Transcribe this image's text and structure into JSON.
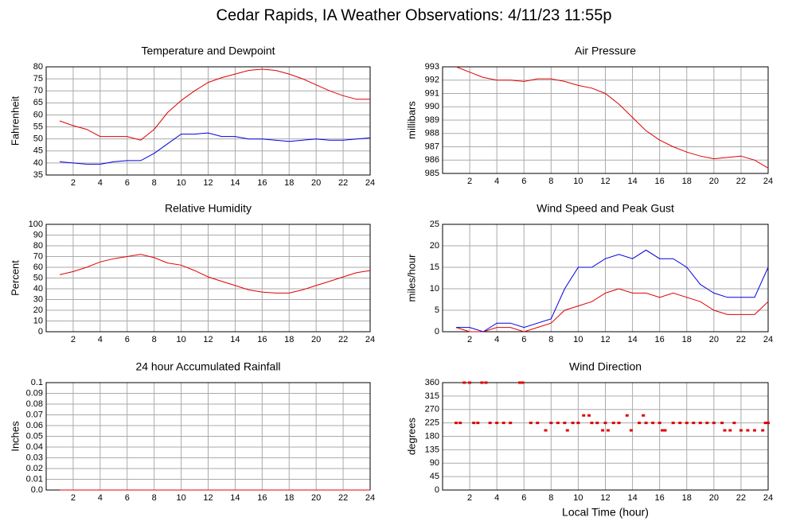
{
  "title": "Cedar Rapids, IA Weather Observations: 4/11/23 11:55p",
  "chart_data": [
    {
      "type": "line",
      "title": "Temperature and Dewpoint",
      "ylabel": "Fahrenheit",
      "x": [
        1,
        2,
        3,
        4,
        5,
        6,
        7,
        8,
        9,
        10,
        11,
        12,
        13,
        14,
        15,
        16,
        17,
        18,
        19,
        20,
        21,
        22,
        23,
        24
      ],
      "series": [
        {
          "color": "#e00000",
          "values": [
            57.5,
            55.5,
            54,
            51,
            51,
            51,
            49.5,
            54,
            61,
            66,
            70,
            73.5,
            75.5,
            77,
            78.5,
            79,
            78.5,
            77,
            75,
            72.5,
            70,
            68,
            66.5,
            66.5
          ]
        },
        {
          "color": "#0000e0",
          "values": [
            40.5,
            40,
            39.5,
            39.5,
            40.5,
            41,
            41,
            44,
            48,
            52,
            52,
            52.5,
            51,
            51,
            50,
            50,
            49.5,
            49,
            49.5,
            50,
            49.5,
            49.5,
            50,
            50.5
          ]
        }
      ],
      "xlim": [
        0,
        24
      ],
      "xticks": [
        2,
        4,
        6,
        8,
        10,
        12,
        14,
        16,
        18,
        20,
        22,
        24
      ],
      "ylim": [
        35,
        80
      ],
      "yticks": [
        35,
        40,
        45,
        50,
        55,
        60,
        65,
        70,
        75,
        80
      ],
      "grid": true
    },
    {
      "type": "line",
      "title": "Air Pressure",
      "ylabel": "millibars",
      "x": [
        1,
        2,
        3,
        4,
        5,
        6,
        7,
        8,
        9,
        10,
        11,
        12,
        13,
        14,
        15,
        16,
        17,
        18,
        19,
        20,
        21,
        22,
        23,
        24
      ],
      "series": [
        {
          "color": "#e00000",
          "values": [
            993,
            992.6,
            992.2,
            992,
            992,
            991.9,
            992.1,
            992.1,
            991.9,
            991.6,
            991.4,
            991,
            990.2,
            989.2,
            988.2,
            987.5,
            987,
            986.6,
            986.3,
            986.1,
            986.2,
            986.3,
            986,
            985.4
          ]
        }
      ],
      "xlim": [
        0,
        24
      ],
      "xticks": [
        2,
        4,
        6,
        8,
        10,
        12,
        14,
        16,
        18,
        20,
        22,
        24
      ],
      "ylim": [
        985,
        993
      ],
      "yticks": [
        985,
        986,
        987,
        988,
        989,
        990,
        991,
        992,
        993
      ],
      "grid": true
    },
    {
      "type": "line",
      "title": "Relative Humidity",
      "ylabel": "Percent",
      "x": [
        1,
        2,
        3,
        4,
        5,
        6,
        7,
        8,
        9,
        10,
        11,
        12,
        13,
        14,
        15,
        16,
        17,
        18,
        19,
        20,
        21,
        22,
        23,
        24
      ],
      "series": [
        {
          "color": "#e00000",
          "values": [
            53,
            56,
            60,
            65,
            68,
            70,
            72,
            69,
            64,
            62,
            57,
            51,
            47,
            43,
            39,
            37,
            36,
            36,
            39,
            43,
            47,
            51,
            55,
            57
          ]
        }
      ],
      "xlim": [
        0,
        24
      ],
      "xticks": [
        2,
        4,
        6,
        8,
        10,
        12,
        14,
        16,
        18,
        20,
        22,
        24
      ],
      "ylim": [
        0,
        100
      ],
      "yticks": [
        0,
        10,
        20,
        30,
        40,
        50,
        60,
        70,
        80,
        90,
        100
      ],
      "grid": true
    },
    {
      "type": "line",
      "title": "Wind Speed and Peak Gust",
      "ylabel": "miles/hour",
      "x": [
        1,
        2,
        3,
        4,
        5,
        6,
        7,
        8,
        9,
        10,
        11,
        12,
        13,
        14,
        15,
        16,
        17,
        18,
        19,
        20,
        21,
        22,
        23,
        24
      ],
      "series": [
        {
          "color": "#e00000",
          "values": [
            1,
            0,
            0,
            1,
            1,
            0,
            1,
            2,
            5,
            6,
            7,
            9,
            10,
            9,
            9,
            8,
            9,
            8,
            7,
            5,
            4,
            4,
            4,
            7
          ]
        },
        {
          "color": "#0000e0",
          "values": [
            1,
            1,
            0,
            2,
            2,
            1,
            2,
            3,
            10,
            15,
            15,
            17,
            18,
            17,
            19,
            17,
            17,
            15,
            11,
            9,
            8,
            8,
            8,
            15
          ]
        }
      ],
      "xlim": [
        0,
        24
      ],
      "xticks": [
        2,
        4,
        6,
        8,
        10,
        12,
        14,
        16,
        18,
        20,
        22,
        24
      ],
      "ylim": [
        0,
        25
      ],
      "yticks": [
        0,
        5,
        10,
        15,
        20,
        25
      ],
      "grid": true
    },
    {
      "type": "line",
      "title": "24 hour Accumulated Rainfall",
      "ylabel": "Inches",
      "x": [
        1,
        24
      ],
      "series": [
        {
          "color": "#e00000",
          "values": [
            0,
            0
          ]
        }
      ],
      "xlim": [
        0,
        24
      ],
      "xticks": [
        2,
        4,
        6,
        8,
        10,
        12,
        14,
        16,
        18,
        20,
        22,
        24
      ],
      "ylim": [
        0,
        0.1
      ],
      "yticks": [
        {
          "value": 0,
          "label": "0.0"
        },
        0.01,
        0.02,
        0.03,
        0.04,
        0.05,
        0.06,
        0.07,
        0.08,
        0.09,
        0.1
      ],
      "grid": true
    },
    {
      "type": "scatter",
      "title": "Wind Direction",
      "ylabel": "degrees",
      "xlabel": "Local Time (hour)",
      "x": [
        1,
        1.3,
        1.6,
        2,
        2.3,
        2.6,
        2.9,
        3.2,
        3.5,
        4,
        4.5,
        5,
        5.7,
        5.9,
        6.5,
        7,
        7.6,
        8,
        8.5,
        9,
        9.2,
        9.6,
        10,
        10.4,
        10.8,
        11,
        11.4,
        11.8,
        12,
        12.2,
        12.6,
        13,
        13.6,
        13.9,
        14.5,
        14.8,
        15,
        15.5,
        16,
        16.2,
        16.4,
        17,
        17.5,
        18,
        18.5,
        19,
        19.5,
        20,
        20.6,
        20.8,
        21.2,
        21.5,
        22,
        22.5,
        23,
        23.6,
        23.8,
        24
      ],
      "values": [
        225,
        225,
        360,
        360,
        225,
        225,
        360,
        360,
        225,
        225,
        225,
        225,
        360,
        360,
        225,
        225,
        200,
        225,
        225,
        225,
        200,
        225,
        225,
        250,
        250,
        225,
        225,
        200,
        225,
        200,
        225,
        225,
        250,
        200,
        225,
        250,
        225,
        225,
        225,
        200,
        200,
        225,
        225,
        225,
        225,
        225,
        225,
        225,
        225,
        200,
        200,
        225,
        200,
        200,
        200,
        200,
        225,
        225
      ],
      "color": "#e00000",
      "xlim": [
        0,
        24
      ],
      "xticks": [
        2,
        4,
        6,
        8,
        10,
        12,
        14,
        16,
        18,
        20,
        22,
        24
      ],
      "ylim": [
        0,
        360
      ],
      "yticks": [
        0,
        45,
        90,
        135,
        180,
        225,
        270,
        315,
        360
      ],
      "grid": true
    }
  ]
}
